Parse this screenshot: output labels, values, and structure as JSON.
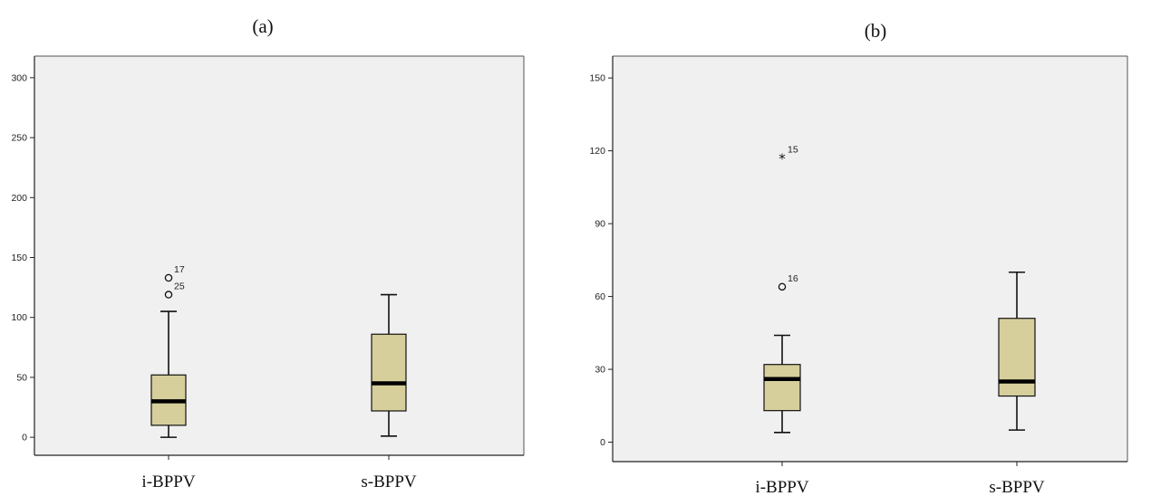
{
  "chart_data": [
    {
      "type": "boxplot",
      "panel_label": "(a)",
      "categories": [
        "i-BPPV",
        "s-BPPV"
      ],
      "ylim": [
        -15,
        318
      ],
      "yticks": [
        0,
        50,
        100,
        150,
        200,
        250,
        300
      ],
      "boxes": [
        {
          "category": "i-BPPV",
          "min": 0,
          "q1": 10,
          "median": 30,
          "q3": 52,
          "max": 105,
          "outliers": [
            {
              "value": 133,
              "label": "17",
              "marker": "circle"
            },
            {
              "value": 119,
              "label": "25",
              "marker": "circle"
            }
          ]
        },
        {
          "category": "s-BPPV",
          "min": 1,
          "q1": 22,
          "median": 45,
          "q3": 86,
          "max": 119,
          "outliers": []
        }
      ],
      "grid": false,
      "box_color": "#d6cf9b",
      "plot_background": "#f0f0f0"
    },
    {
      "type": "boxplot",
      "panel_label": "(b)",
      "categories": [
        "i-BPPV",
        "s-BPPV"
      ],
      "ylim": [
        -8,
        159
      ],
      "yticks": [
        0,
        30,
        60,
        90,
        120,
        150
      ],
      "boxes": [
        {
          "category": "i-BPPV",
          "min": 4,
          "q1": 13,
          "median": 26,
          "q3": 32,
          "max": 44,
          "outliers": [
            {
              "value": 117,
              "label": "15",
              "marker": "star"
            },
            {
              "value": 64,
              "label": "16",
              "marker": "circle"
            }
          ]
        },
        {
          "category": "s-BPPV",
          "min": 5,
          "q1": 19,
          "median": 25,
          "q3": 51,
          "max": 70,
          "outliers": []
        }
      ],
      "grid": false,
      "box_color": "#d6cf9b",
      "plot_background": "#f0f0f0"
    }
  ]
}
